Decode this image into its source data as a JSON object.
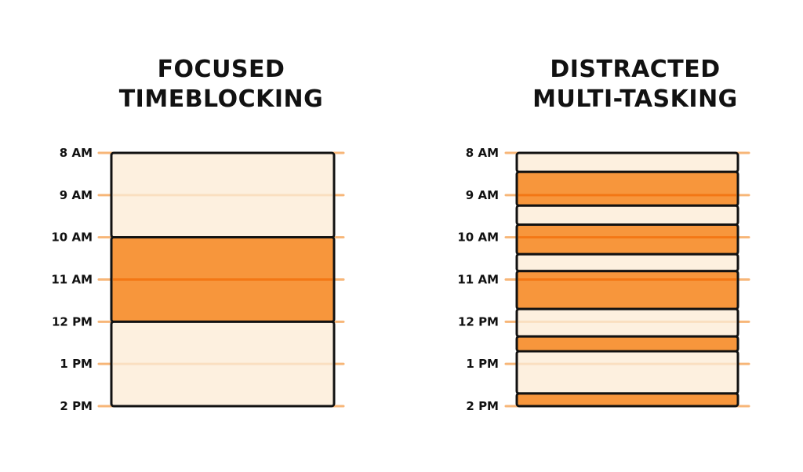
{
  "colors": {
    "focus": "#f7963c",
    "focus_line": "#f26b05",
    "light": "#fdf0df",
    "light_line": "#f9d8b4",
    "tick_mark": "#f7b678",
    "outline": "#111111"
  },
  "hour_labels": [
    "8 AM",
    "9 AM",
    "10 AM",
    "11 AM",
    "12 PM",
    "1 PM",
    "2 PM"
  ],
  "panels": [
    {
      "title_lines": [
        "FOCUSED",
        "TIMEBLOCKING"
      ],
      "blocks": [
        {
          "start": 0,
          "end": 2,
          "kind": "light"
        },
        {
          "start": 2,
          "end": 4,
          "kind": "focus"
        },
        {
          "start": 4,
          "end": 6,
          "kind": "light"
        }
      ]
    },
    {
      "title_lines": [
        "DISTRACTED",
        "MULTI-TASKING"
      ],
      "blocks": [
        {
          "start": 0,
          "end": 0.45,
          "kind": "light"
        },
        {
          "start": 0.45,
          "end": 1.25,
          "kind": "focus"
        },
        {
          "start": 1.25,
          "end": 1.7,
          "kind": "light"
        },
        {
          "start": 1.7,
          "end": 2.4,
          "kind": "focus"
        },
        {
          "start": 2.4,
          "end": 2.8,
          "kind": "light"
        },
        {
          "start": 2.8,
          "end": 3.7,
          "kind": "focus"
        },
        {
          "start": 3.7,
          "end": 4.35,
          "kind": "light"
        },
        {
          "start": 4.35,
          "end": 4.7,
          "kind": "focus"
        },
        {
          "start": 4.7,
          "end": 5.7,
          "kind": "light"
        },
        {
          "start": 5.7,
          "end": 6,
          "kind": "focus"
        }
      ]
    }
  ]
}
